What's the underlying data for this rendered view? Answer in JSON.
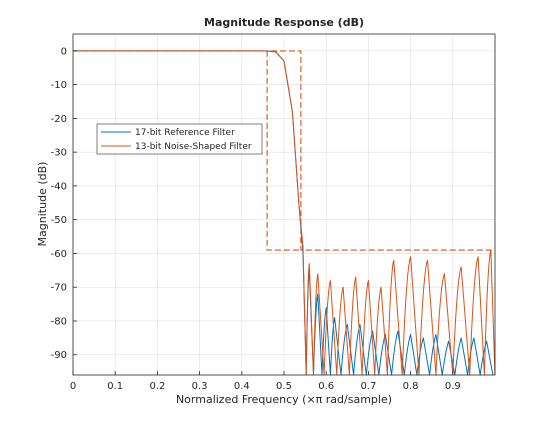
{
  "chart_data": {
    "type": "line",
    "title": "Magnitude Response (dB)",
    "xlabel": "Normalized Frequency (×π rad/sample)",
    "ylabel": "Magnitude (dB)",
    "xlim": [
      0,
      1
    ],
    "ylim": [
      -96,
      5
    ],
    "xticks": [
      0,
      0.1,
      0.2,
      0.3,
      0.4,
      0.5,
      0.6,
      0.7,
      0.8,
      0.9
    ],
    "xtick_labels": [
      "0",
      "0.1",
      "0.2",
      "0.3",
      "0.4",
      "0.5",
      "0.6",
      "0.7",
      "0.8",
      "0.9"
    ],
    "yticks": [
      0,
      -10,
      -20,
      -30,
      -40,
      -50,
      -60,
      -70,
      -80,
      -90
    ],
    "ytick_labels": [
      "0",
      "-10",
      "-20",
      "-30",
      "-40",
      "-50",
      "-60",
      "-70",
      "-80",
      "-90"
    ],
    "grid": true,
    "legend_position": "middle-left",
    "series": [
      {
        "name": "17-bit Reference Filter",
        "color": "#0072bd",
        "passband": [
          [
            0,
            0
          ],
          [
            0.45,
            0
          ],
          [
            0.48,
            -0.2
          ],
          [
            0.5,
            -3
          ],
          [
            0.52,
            -18
          ],
          [
            0.535,
            -45
          ],
          [
            0.545,
            -60
          ]
        ],
        "stopband_edge": 0.545,
        "stopband_peaks": [
          [
            0.56,
            -65
          ],
          [
            0.58,
            -72
          ],
          [
            0.6,
            -76
          ],
          [
            0.62,
            -79
          ],
          [
            0.65,
            -81
          ],
          [
            0.68,
            -81
          ],
          [
            0.71,
            -83
          ],
          [
            0.74,
            -84
          ],
          [
            0.77,
            -83
          ],
          [
            0.8,
            -84
          ],
          [
            0.83,
            -85
          ],
          [
            0.86,
            -84
          ],
          [
            0.89,
            -86
          ],
          [
            0.92,
            -85
          ],
          [
            0.95,
            -85
          ],
          [
            0.98,
            -86
          ]
        ]
      },
      {
        "name": "13-bit Noise-Shaped Filter",
        "color": "#d95319",
        "passband": [
          [
            0,
            0
          ],
          [
            0.45,
            0
          ],
          [
            0.48,
            -0.3
          ],
          [
            0.5,
            -3
          ],
          [
            0.52,
            -18
          ],
          [
            0.535,
            -45
          ],
          [
            0.545,
            -58
          ]
        ],
        "stopband_edge": 0.545,
        "stopband_peaks": [
          [
            0.56,
            -63
          ],
          [
            0.58,
            -66
          ],
          [
            0.61,
            -68
          ],
          [
            0.64,
            -70
          ],
          [
            0.67,
            -67
          ],
          [
            0.7,
            -68
          ],
          [
            0.73,
            -70
          ],
          [
            0.76,
            -62
          ],
          [
            0.8,
            -61
          ],
          [
            0.84,
            -62
          ],
          [
            0.88,
            -66
          ],
          [
            0.92,
            -64
          ],
          [
            0.96,
            -61
          ],
          [
            0.99,
            -59
          ]
        ]
      }
    ],
    "mask": {
      "color": "#d95319",
      "style": "dashed",
      "points": [
        [
          0,
          0
        ],
        [
          0.54,
          0
        ],
        [
          0.54,
          -59
        ],
        [
          1,
          -59
        ]
      ],
      "points2": [
        [
          0.46,
          0
        ],
        [
          0.46,
          -59
        ],
        [
          0.54,
          -59
        ]
      ]
    }
  }
}
